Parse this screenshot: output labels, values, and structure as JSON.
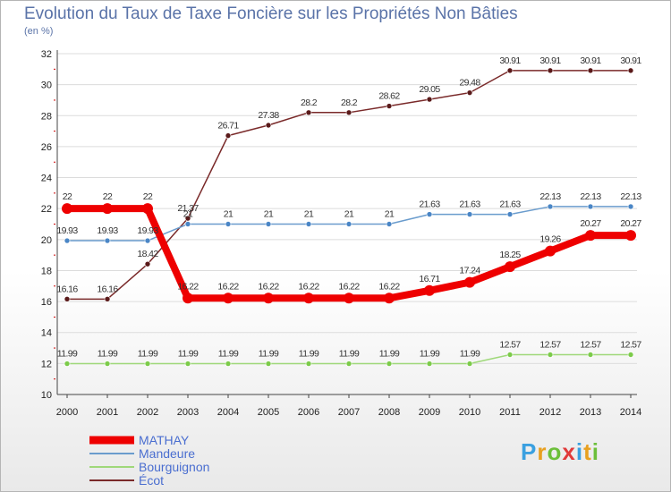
{
  "title": "Evolution du Taux de Taxe Foncière sur les Propriétés Non Bâties",
  "unit": "(en %)",
  "logo": "Proxiti",
  "chart_data": {
    "type": "line",
    "x": [
      2000,
      2001,
      2002,
      2003,
      2004,
      2005,
      2006,
      2007,
      2008,
      2009,
      2010,
      2011,
      2012,
      2013,
      2014
    ],
    "ylim": [
      10,
      32
    ],
    "yticks": [
      10,
      12,
      14,
      16,
      18,
      20,
      22,
      24,
      26,
      28,
      30,
      32
    ],
    "grid": "horizontal",
    "series": [
      {
        "name": "Écot",
        "color": "#7a2a2a",
        "marker": "#5a1a1a",
        "width": 1.5,
        "values": [
          16.16,
          16.16,
          18.42,
          21.37,
          26.71,
          27.38,
          28.2,
          28.2,
          28.62,
          29.05,
          29.48,
          30.91,
          30.91,
          30.91,
          30.91
        ],
        "labels": [
          "16.16",
          "16.16",
          "18.42",
          "21.37",
          "26.71",
          "27.38",
          "28.2",
          "28.2",
          "28.62",
          "29.05",
          "29.48",
          "30.91",
          "30.91",
          "30.91",
          "30.91"
        ]
      },
      {
        "name": "Mandeure",
        "color": "#6a9ccd",
        "marker": "#4a86c6",
        "width": 1.5,
        "values": [
          19.93,
          19.93,
          19.93,
          21,
          21,
          21,
          21,
          21,
          21,
          21.63,
          21.63,
          21.63,
          22.13,
          22.13,
          22.13
        ],
        "labels": [
          "19.93",
          "19.93",
          "19.93",
          "21",
          "21",
          "21",
          "21",
          "21",
          "21",
          "21.63",
          "21.63",
          "21.63",
          "22.13",
          "22.13",
          "22.13"
        ]
      },
      {
        "name": "Bourguignon",
        "color": "#9fd87a",
        "marker": "#7ccb4a",
        "width": 1.5,
        "values": [
          11.99,
          11.99,
          11.99,
          11.99,
          11.99,
          11.99,
          11.99,
          11.99,
          11.99,
          11.99,
          11.99,
          12.57,
          12.57,
          12.57,
          12.57
        ],
        "labels": [
          "11.99",
          "11.99",
          "11.99",
          "11.99",
          "11.99",
          "11.99",
          "11.99",
          "11.99",
          "11.99",
          "11.99",
          "11.99",
          "12.57",
          "12.57",
          "12.57",
          "12.57"
        ]
      },
      {
        "name": "MATHAY",
        "color": "#ee0000",
        "marker": "#ee0000",
        "width": 8,
        "values": [
          22,
          22,
          22,
          16.22,
          16.22,
          16.22,
          16.22,
          16.22,
          16.22,
          16.71,
          17.24,
          18.25,
          19.26,
          20.27,
          20.27
        ],
        "labels": [
          "22",
          "22",
          "22",
          "16.22",
          "16.22",
          "16.22",
          "16.22",
          "16.22",
          "16.22",
          "16.71",
          "17.24",
          "18.25",
          "19.26",
          "20.27",
          "20.27"
        ]
      }
    ],
    "legend": [
      "MATHAY",
      "Mandeure",
      "Bourguignon",
      "Écot"
    ],
    "legend_placement": "bottom-left"
  }
}
